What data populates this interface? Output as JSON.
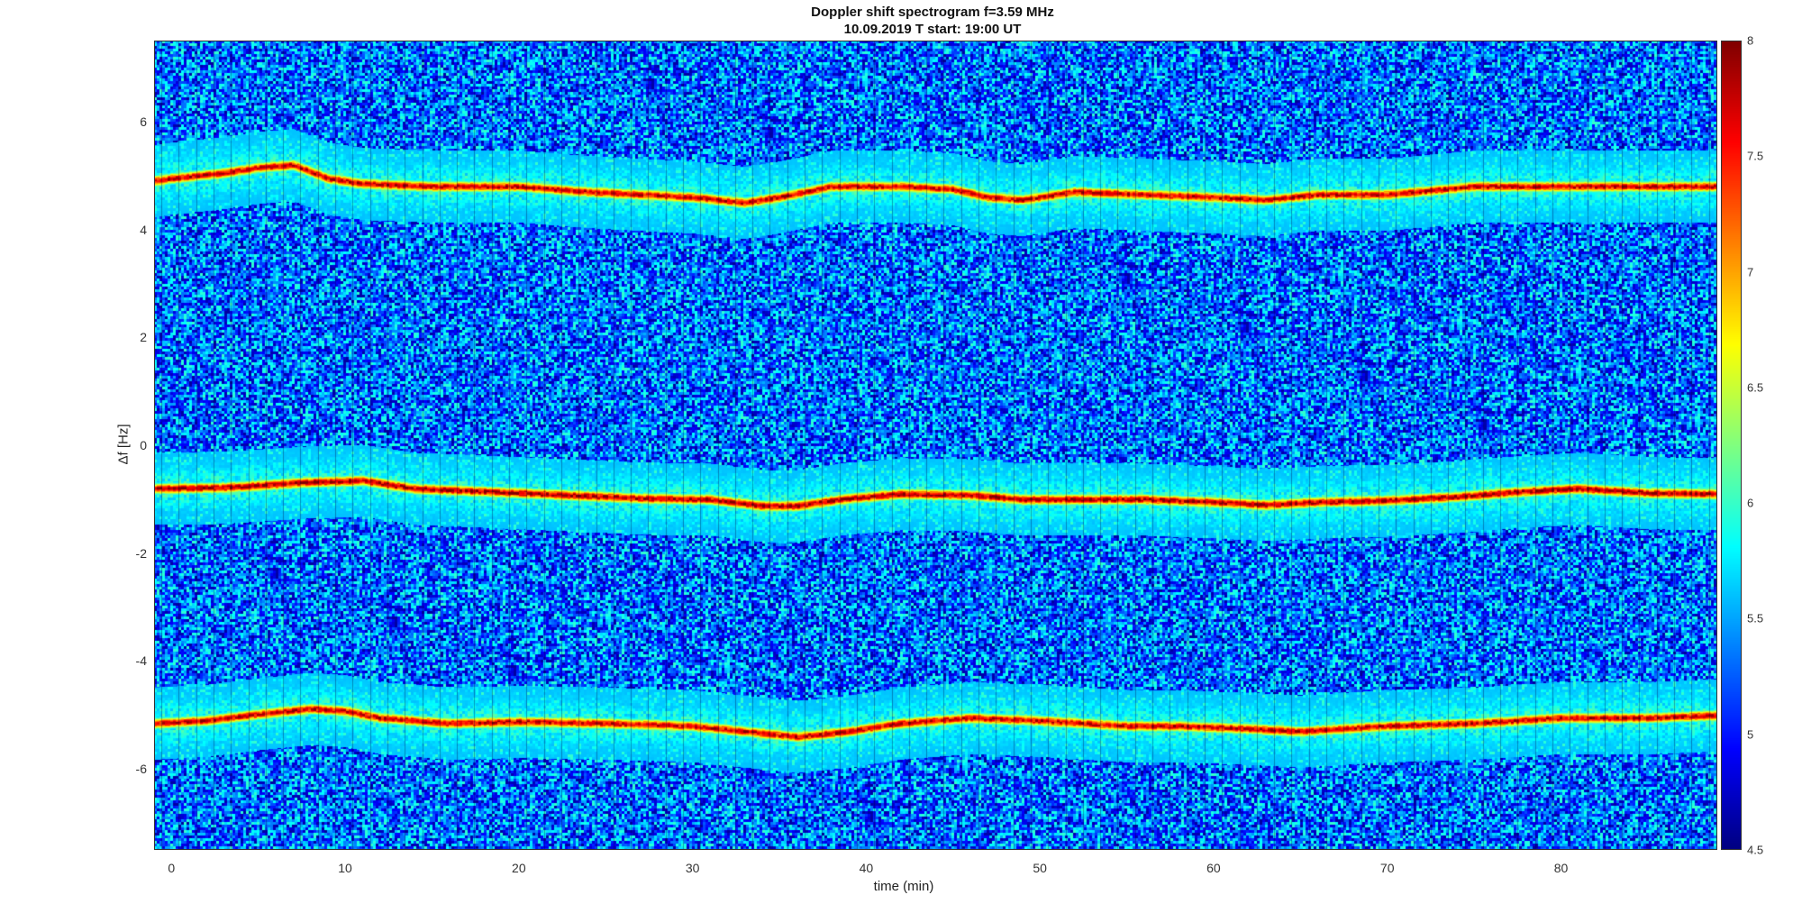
{
  "chart_data": {
    "type": "heatmap",
    "title": "Doppler shift spectrogram f=3.59 MHz",
    "subtitle": "10.09.2019   T start: 19:00 UT",
    "xlabel": "time (min)",
    "ylabel": "Δf [Hz]",
    "xlim": [
      -1,
      89
    ],
    "ylim": [
      -7.5,
      7.5
    ],
    "xticks": [
      0,
      10,
      20,
      30,
      40,
      50,
      60,
      70,
      80
    ],
    "yticks": [
      6,
      4,
      2,
      0,
      -2,
      -4,
      -6
    ],
    "colormap": "jet",
    "clim": [
      4.5,
      8
    ],
    "colorbar_ticks": [
      8,
      7.5,
      7,
      6.5,
      6,
      5.5,
      5,
      4.5
    ],
    "background_level": 5.3,
    "traces": [
      {
        "name": "",
        "points": [
          [
            -1,
            4.9
          ],
          [
            0,
            4.95
          ],
          [
            3,
            5.05
          ],
          [
            5,
            5.15
          ],
          [
            7,
            5.2
          ],
          [
            9,
            4.95
          ],
          [
            11,
            4.85
          ],
          [
            15,
            4.8
          ],
          [
            20,
            4.8
          ],
          [
            24,
            4.7
          ],
          [
            27,
            4.65
          ],
          [
            30,
            4.6
          ],
          [
            33,
            4.5
          ],
          [
            35,
            4.6
          ],
          [
            38,
            4.8
          ],
          [
            42,
            4.8
          ],
          [
            45,
            4.75
          ],
          [
            47,
            4.6
          ],
          [
            49,
            4.55
          ],
          [
            52,
            4.7
          ],
          [
            56,
            4.65
          ],
          [
            60,
            4.6
          ],
          [
            63,
            4.55
          ],
          [
            66,
            4.65
          ],
          [
            70,
            4.65
          ],
          [
            75,
            4.8
          ],
          [
            80,
            4.8
          ],
          [
            85,
            4.8
          ],
          [
            89,
            4.8
          ]
        ],
        "peak_level": 7.7
      },
      {
        "name": "",
        "points": [
          [
            -1,
            -0.8
          ],
          [
            3,
            -0.78
          ],
          [
            8,
            -0.68
          ],
          [
            11,
            -0.65
          ],
          [
            14,
            -0.8
          ],
          [
            20,
            -0.88
          ],
          [
            27,
            -0.98
          ],
          [
            31,
            -1.0
          ],
          [
            34,
            -1.12
          ],
          [
            36,
            -1.12
          ],
          [
            39,
            -0.98
          ],
          [
            42,
            -0.9
          ],
          [
            46,
            -0.92
          ],
          [
            49,
            -1.0
          ],
          [
            52,
            -1.0
          ],
          [
            56,
            -1.0
          ],
          [
            60,
            -1.05
          ],
          [
            63,
            -1.1
          ],
          [
            66,
            -1.05
          ],
          [
            70,
            -1.02
          ],
          [
            74,
            -0.95
          ],
          [
            78,
            -0.85
          ],
          [
            81,
            -0.8
          ],
          [
            85,
            -0.88
          ],
          [
            89,
            -0.9
          ]
        ],
        "peak_level": 7.8
      },
      {
        "name": "",
        "points": [
          [
            -1,
            -5.15
          ],
          [
            2,
            -5.1
          ],
          [
            5,
            -4.98
          ],
          [
            8,
            -4.88
          ],
          [
            10,
            -4.92
          ],
          [
            12,
            -5.05
          ],
          [
            16,
            -5.15
          ],
          [
            20,
            -5.12
          ],
          [
            25,
            -5.15
          ],
          [
            30,
            -5.2
          ],
          [
            33,
            -5.3
          ],
          [
            36,
            -5.4
          ],
          [
            39,
            -5.3
          ],
          [
            42,
            -5.15
          ],
          [
            46,
            -5.05
          ],
          [
            50,
            -5.1
          ],
          [
            55,
            -5.2
          ],
          [
            58,
            -5.2
          ],
          [
            62,
            -5.25
          ],
          [
            65,
            -5.3
          ],
          [
            70,
            -5.2
          ],
          [
            75,
            -5.15
          ],
          [
            80,
            -5.05
          ],
          [
            85,
            -5.05
          ],
          [
            89,
            -5.0
          ]
        ],
        "peak_level": 7.7
      }
    ]
  }
}
